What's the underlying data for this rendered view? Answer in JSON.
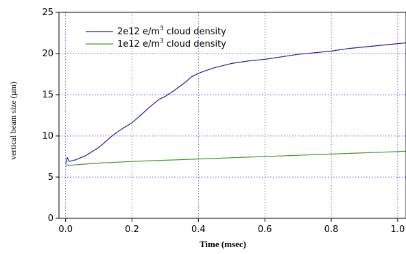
{
  "chart_data": {
    "type": "line",
    "title": "",
    "xlabel": "Time  (msec)",
    "ylabel": "vertical beam size (µm)",
    "xlim": [
      -0.02,
      1.025
    ],
    "ylim": [
      0,
      25
    ],
    "xticks": [
      0.0,
      0.2,
      0.4,
      0.6,
      0.8,
      1.0
    ],
    "xtick_labels": [
      "0.0",
      "0.2",
      "0.4",
      "0.6",
      "0.8",
      "1.0"
    ],
    "yticks": [
      0,
      5,
      10,
      15,
      20,
      25
    ],
    "ytick_labels": [
      "0",
      "5",
      "10",
      "15",
      "20",
      "25"
    ],
    "grid": true,
    "legend_position": "top-left",
    "series": [
      {
        "name_prefix": "2e12 e/m",
        "name_sup": "3",
        "name_suffix": " cloud density",
        "color": "#1a1aaa",
        "x": [
          0.0,
          0.005,
          0.01,
          0.03,
          0.06,
          0.1,
          0.14,
          0.16,
          0.2,
          0.22,
          0.25,
          0.28,
          0.3,
          0.33,
          0.36,
          0.38,
          0.4,
          0.42,
          0.45,
          0.5,
          0.55,
          0.6,
          0.65,
          0.7,
          0.75,
          0.8,
          0.85,
          0.9,
          0.95,
          1.0,
          1.025
        ],
        "y": [
          6.6,
          7.4,
          6.9,
          7.1,
          7.6,
          8.6,
          10.0,
          10.6,
          11.6,
          12.3,
          13.4,
          14.4,
          14.8,
          15.6,
          16.5,
          17.2,
          17.6,
          17.9,
          18.3,
          18.8,
          19.1,
          19.3,
          19.6,
          19.9,
          20.1,
          20.3,
          20.6,
          20.8,
          21.0,
          21.2,
          21.3
        ]
      },
      {
        "name_prefix": "1e12 e/m",
        "name_sup": "3",
        "name_suffix": " cloud density",
        "color": "#3a9a1a",
        "x": [
          0.0,
          0.005,
          0.01,
          0.03,
          0.1,
          0.2,
          0.3,
          0.4,
          0.5,
          0.6,
          0.7,
          0.8,
          0.9,
          1.0,
          1.025
        ],
        "y": [
          6.3,
          6.5,
          6.4,
          6.5,
          6.7,
          6.9,
          7.05,
          7.2,
          7.35,
          7.5,
          7.65,
          7.8,
          7.95,
          8.1,
          8.15
        ]
      }
    ]
  }
}
